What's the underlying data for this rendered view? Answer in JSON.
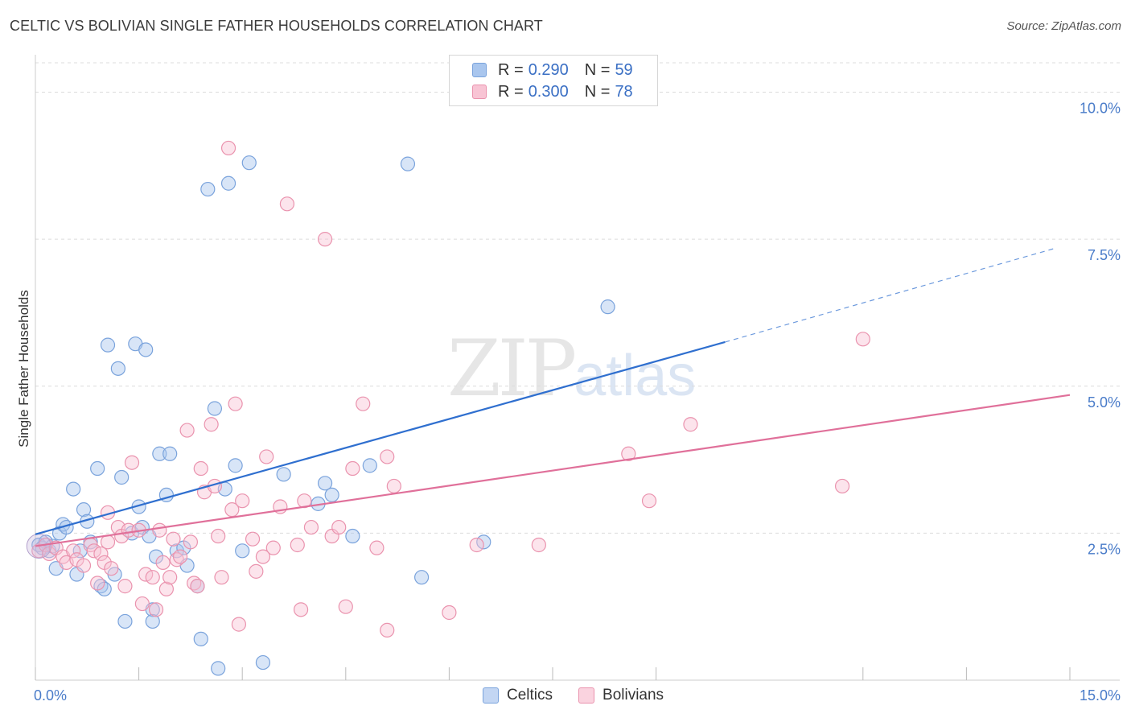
{
  "title": "CELTIC VS BOLIVIAN SINGLE FATHER HOUSEHOLDS CORRELATION CHART",
  "source": "Source: ZipAtlas.com",
  "watermark": {
    "zip": "ZIP",
    "atlas": "atlas"
  },
  "legend_top": [
    {
      "r_label": "R =",
      "r_value": "0.290",
      "n_label": "N =",
      "n_value": "59",
      "color": "#a9c6ee",
      "border": "#7aa3dc"
    },
    {
      "r_label": "R =",
      "r_value": "0.300",
      "n_label": "N =",
      "n_value": "78",
      "color": "#f8c4d4",
      "border": "#ea93ae"
    }
  ],
  "legend_bottom": [
    {
      "label": "Celtics",
      "color": "#c3d6f3",
      "border": "#7aa3dc"
    },
    {
      "label": "Bolivians",
      "color": "#fad3df",
      "border": "#ea93ae"
    }
  ],
  "chart_data": {
    "type": "scatter",
    "ylabel": "Single Father Households",
    "xlim": [
      0,
      15
    ],
    "ylim": [
      0,
      10.5
    ],
    "x_tick_labels": [
      {
        "value": 0,
        "label": "0.0%"
      },
      {
        "value": 15,
        "label": "15.0%"
      }
    ],
    "y_tick_labels": [
      {
        "value": 2.5,
        "label": "2.5%"
      },
      {
        "value": 5.0,
        "label": "5.0%"
      },
      {
        "value": 7.5,
        "label": "7.5%"
      },
      {
        "value": 10.0,
        "label": "10.0%"
      }
    ],
    "x_minor_ticks": [
      0,
      1.5,
      3,
      4.5,
      6,
      7.5,
      9,
      12,
      13.5,
      15
    ],
    "series": [
      {
        "name": "Celtics",
        "color": "#7aa3dc",
        "fill": "#a9c6ee",
        "line_color": "#2f6fcf",
        "trend": {
          "x0": 0,
          "y0": 2.48,
          "x1": 10.0,
          "y1": 5.75,
          "dash_x1": 14.8,
          "dash_y1": 7.35
        },
        "points": [
          [
            0.05,
            2.3
          ],
          [
            0.1,
            2.25
          ],
          [
            0.15,
            2.35
          ],
          [
            0.2,
            2.2
          ],
          [
            0.25,
            2.28
          ],
          [
            0.3,
            1.9
          ],
          [
            0.35,
            2.5
          ],
          [
            0.4,
            2.65
          ],
          [
            0.45,
            2.6
          ],
          [
            0.55,
            3.25
          ],
          [
            0.6,
            1.8
          ],
          [
            0.65,
            2.2
          ],
          [
            0.7,
            2.9
          ],
          [
            0.75,
            2.7
          ],
          [
            0.8,
            2.35
          ],
          [
            0.9,
            3.6
          ],
          [
            0.95,
            1.6
          ],
          [
            1.0,
            1.55
          ],
          [
            1.05,
            5.7
          ],
          [
            1.15,
            1.8
          ],
          [
            1.2,
            5.3
          ],
          [
            1.25,
            3.45
          ],
          [
            1.3,
            1.0
          ],
          [
            1.4,
            2.5
          ],
          [
            1.45,
            5.72
          ],
          [
            1.5,
            2.95
          ],
          [
            1.55,
            2.6
          ],
          [
            1.6,
            5.62
          ],
          [
            1.7,
            1.2
          ],
          [
            1.7,
            1.0
          ],
          [
            1.75,
            2.1
          ],
          [
            1.8,
            3.85
          ],
          [
            1.9,
            3.15
          ],
          [
            1.95,
            3.85
          ],
          [
            2.05,
            2.2
          ],
          [
            2.15,
            2.25
          ],
          [
            2.2,
            1.95
          ],
          [
            2.35,
            1.6
          ],
          [
            2.4,
            0.7
          ],
          [
            2.5,
            8.35
          ],
          [
            2.6,
            4.62
          ],
          [
            2.65,
            0.2
          ],
          [
            2.75,
            3.25
          ],
          [
            2.8,
            8.45
          ],
          [
            2.9,
            3.65
          ],
          [
            3.0,
            2.2
          ],
          [
            3.1,
            8.8
          ],
          [
            3.3,
            0.3
          ],
          [
            3.6,
            3.5
          ],
          [
            4.1,
            3.0
          ],
          [
            4.2,
            3.35
          ],
          [
            4.3,
            3.15
          ],
          [
            4.6,
            2.45
          ],
          [
            4.85,
            3.65
          ],
          [
            5.4,
            8.78
          ],
          [
            5.6,
            1.75
          ],
          [
            6.5,
            2.35
          ],
          [
            8.3,
            6.35
          ],
          [
            1.65,
            2.45
          ]
        ]
      },
      {
        "name": "Bolivians",
        "color": "#ea93ae",
        "fill": "#f8c4d4",
        "line_color": "#e0709a",
        "trend": {
          "x0": 0,
          "y0": 2.28,
          "x1": 15.0,
          "y1": 4.85
        },
        "points": [
          [
            0.05,
            2.2
          ],
          [
            0.15,
            2.3
          ],
          [
            0.2,
            2.15
          ],
          [
            0.3,
            2.25
          ],
          [
            0.4,
            2.1
          ],
          [
            0.45,
            2.0
          ],
          [
            0.55,
            2.2
          ],
          [
            0.6,
            2.05
          ],
          [
            0.7,
            1.95
          ],
          [
            0.8,
            2.3
          ],
          [
            0.85,
            2.2
          ],
          [
            0.9,
            1.65
          ],
          [
            0.95,
            2.15
          ],
          [
            1.0,
            2.0
          ],
          [
            1.05,
            2.85
          ],
          [
            1.1,
            1.9
          ],
          [
            1.2,
            2.6
          ],
          [
            1.25,
            2.45
          ],
          [
            1.3,
            1.6
          ],
          [
            1.35,
            2.55
          ],
          [
            1.4,
            3.7
          ],
          [
            1.5,
            2.55
          ],
          [
            1.55,
            1.3
          ],
          [
            1.6,
            1.8
          ],
          [
            1.7,
            1.75
          ],
          [
            1.75,
            1.2
          ],
          [
            1.8,
            2.55
          ],
          [
            1.85,
            2.0
          ],
          [
            1.9,
            1.55
          ],
          [
            1.95,
            1.75
          ],
          [
            2.0,
            2.4
          ],
          [
            2.05,
            2.05
          ],
          [
            2.1,
            2.1
          ],
          [
            2.2,
            4.25
          ],
          [
            2.25,
            2.35
          ],
          [
            2.3,
            1.65
          ],
          [
            2.35,
            1.6
          ],
          [
            2.4,
            3.6
          ],
          [
            2.45,
            3.2
          ],
          [
            2.55,
            4.35
          ],
          [
            2.6,
            3.3
          ],
          [
            2.65,
            2.45
          ],
          [
            2.7,
            1.75
          ],
          [
            2.8,
            9.05
          ],
          [
            2.85,
            2.9
          ],
          [
            2.9,
            4.7
          ],
          [
            2.95,
            0.95
          ],
          [
            3.0,
            3.05
          ],
          [
            3.15,
            2.4
          ],
          [
            3.2,
            1.85
          ],
          [
            3.35,
            3.8
          ],
          [
            3.45,
            2.25
          ],
          [
            3.55,
            2.95
          ],
          [
            3.65,
            8.1
          ],
          [
            3.8,
            2.3
          ],
          [
            3.85,
            1.2
          ],
          [
            3.9,
            3.05
          ],
          [
            4.0,
            2.6
          ],
          [
            4.2,
            7.5
          ],
          [
            4.3,
            2.45
          ],
          [
            4.4,
            2.6
          ],
          [
            4.5,
            1.25
          ],
          [
            4.6,
            3.6
          ],
          [
            4.75,
            4.7
          ],
          [
            4.95,
            2.25
          ],
          [
            5.1,
            0.85
          ],
          [
            5.2,
            3.3
          ],
          [
            6.0,
            1.15
          ],
          [
            6.4,
            2.3
          ],
          [
            7.3,
            2.3
          ],
          [
            8.6,
            3.85
          ],
          [
            8.9,
            3.05
          ],
          [
            9.5,
            4.35
          ],
          [
            11.7,
            3.3
          ],
          [
            12.0,
            5.8
          ],
          [
            5.1,
            3.8
          ],
          [
            3.3,
            2.1
          ],
          [
            1.05,
            2.35
          ]
        ]
      }
    ]
  }
}
